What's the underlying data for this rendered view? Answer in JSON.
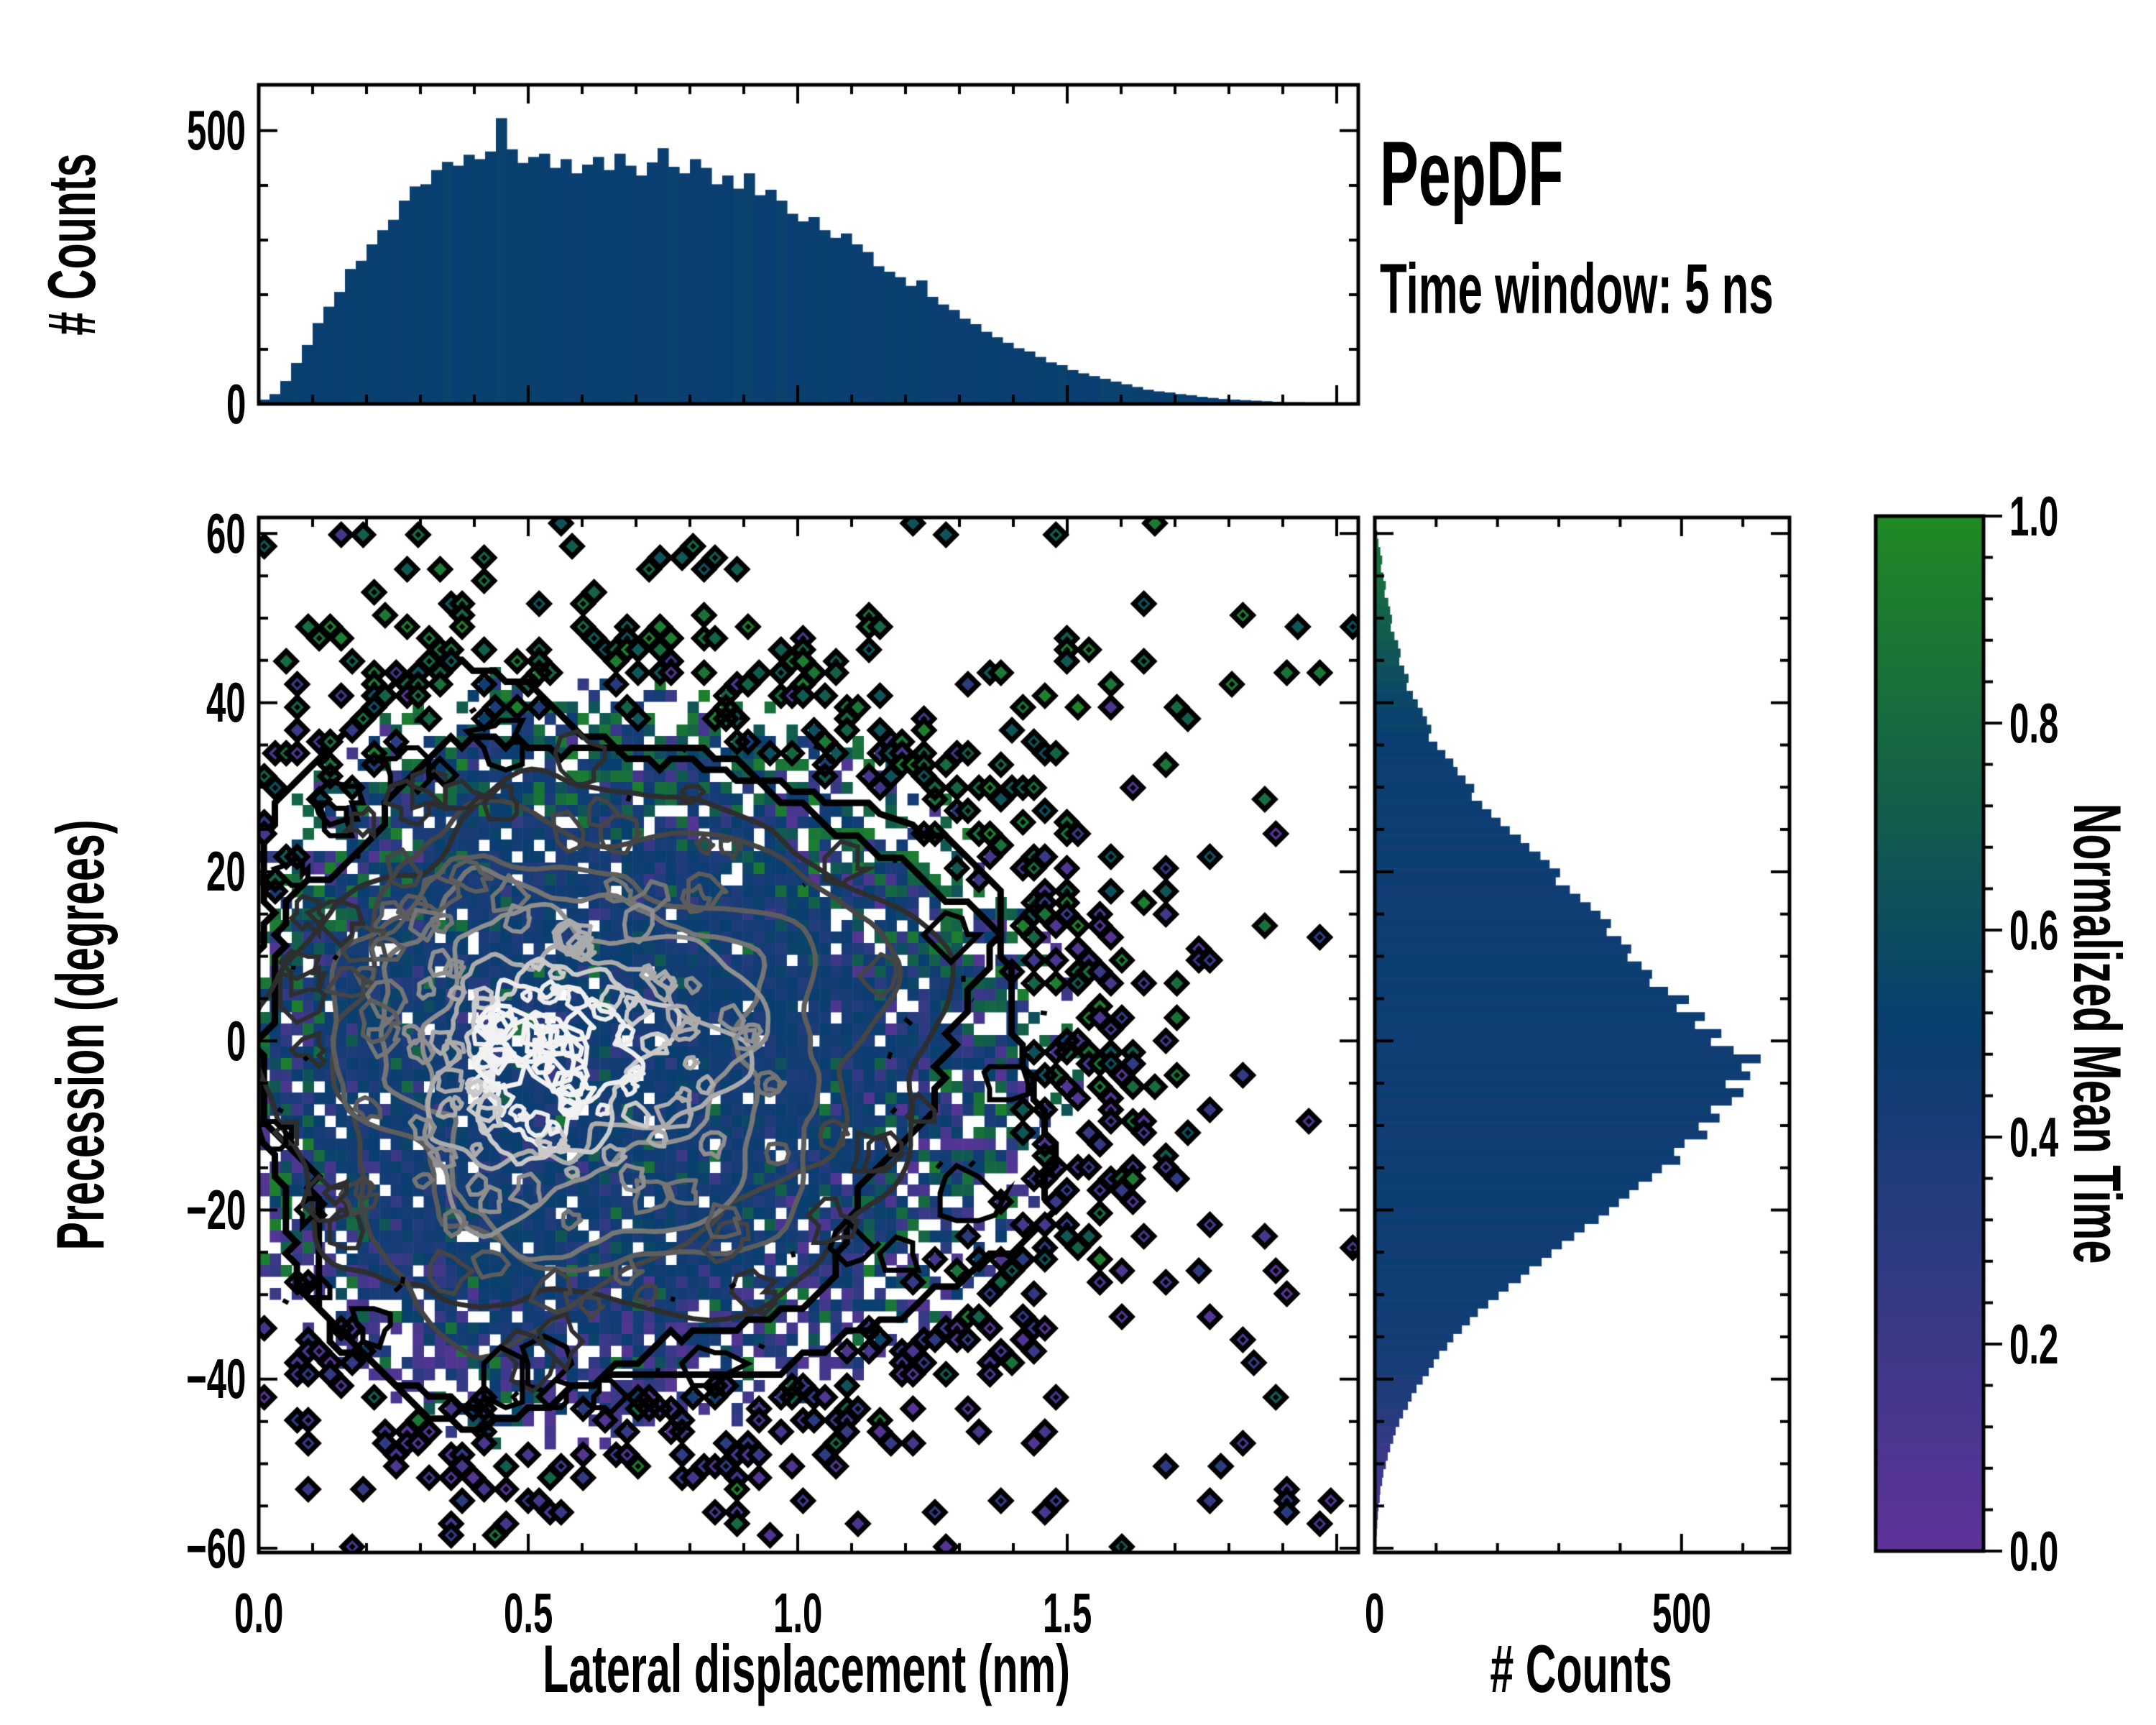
{
  "title": {
    "main": "PepDF",
    "subtitle": "Time window: 5 ns"
  },
  "colors": {
    "background": "#ffffff",
    "spine": "#000000",
    "histogram_bar": "#0d3f6e",
    "colormap_stops": [
      {
        "t": 0.0,
        "color": "#5f3399"
      },
      {
        "t": 0.25,
        "color": "#343a84"
      },
      {
        "t": 0.5,
        "color": "#093e70"
      },
      {
        "t": 0.75,
        "color": "#146347"
      },
      {
        "t": 1.0,
        "color": "#218a24"
      }
    ],
    "contour_grays": [
      "#000000",
      "#000000",
      "#2e2e2e",
      "#454545",
      "#5d5d5d",
      "#757575",
      "#8f8f8f",
      "#ababab",
      "#cacaca",
      "#ededed"
    ]
  },
  "chart_data": [
    {
      "id": "top_histogram",
      "type": "bar",
      "orientation": "vertical",
      "ylabel": "# Counts",
      "xlim": [
        0.0,
        2.04
      ],
      "ylim": [
        0,
        584
      ],
      "yticks": [
        0,
        500
      ],
      "ytick_labels": [
        "0",
        "500"
      ],
      "y_minor_step": 100,
      "x_major_step": 0.5,
      "x_minor_step": 0.1,
      "bin_start": 0.0,
      "bin_width": 0.02,
      "values": [
        8,
        18,
        42,
        75,
        108,
        148,
        178,
        205,
        247,
        262,
        292,
        318,
        337,
        372,
        398,
        402,
        428,
        443,
        436,
        456,
        448,
        462,
        523,
        466,
        441,
        452,
        458,
        432,
        448,
        422,
        438,
        452,
        428,
        458,
        436,
        418,
        442,
        468,
        434,
        422,
        448,
        432,
        402,
        418,
        394,
        422,
        382,
        392,
        372,
        348,
        334,
        342,
        318,
        304,
        312,
        292,
        278,
        252,
        242,
        232,
        216,
        226,
        196,
        182,
        172,
        156,
        146,
        132,
        122,
        112,
        102,
        96,
        86,
        76,
        71,
        62,
        56,
        51,
        46,
        41,
        36,
        31,
        26,
        23,
        21,
        18,
        16,
        13,
        11,
        9,
        8,
        7,
        6,
        5,
        4,
        3,
        3,
        2,
        2,
        1,
        1,
        0
      ]
    },
    {
      "id": "joint_heatmap",
      "type": "heatmap",
      "xlabel": "Lateral displacement (nm)",
      "ylabel": "Precession (degrees)",
      "xlim": [
        0.0,
        2.04
      ],
      "ylim": [
        -60.5,
        61.9
      ],
      "xticks": [
        0.0,
        0.5,
        1.0,
        1.5,
        2.0
      ],
      "xtick_labels": [
        "0.0",
        "0.5",
        "1.0",
        "1.5"
      ],
      "yticks": [
        60,
        40,
        20,
        0,
        -20,
        -40,
        -60
      ],
      "ytick_labels": [
        "60",
        "40",
        "20",
        "0",
        "−20",
        "−40",
        "−60"
      ],
      "x_minor_step": 0.1,
      "y_minor_step": 5,
      "cell_nm": 0.0204,
      "cell_deg": 1.36,
      "color_meaning": "Normalized Mean Time",
      "density_model": {
        "center_nm": 0.53,
        "center_deg": -2,
        "sigma_nm_left": 0.33,
        "sigma_nm_right": 0.52,
        "sigma_deg": 24
      },
      "contour_levels": [
        0.048,
        0.085,
        0.15,
        0.24,
        0.35,
        0.48,
        0.61,
        0.73,
        0.83,
        0.9
      ],
      "seed": 20240517
    },
    {
      "id": "right_histogram",
      "type": "bar",
      "orientation": "horizontal",
      "xlabel": "# Counts",
      "xlim": [
        0,
        676
      ],
      "ylim": [
        -60.5,
        61.9
      ],
      "xticks": [
        0,
        500
      ],
      "xtick_labels": [
        "0",
        "500"
      ],
      "x_minor_step": 100,
      "bin_start_deg": 60.4,
      "bin_step_deg": -1.0,
      "values": [
        4,
        6,
        9,
        12,
        10,
        14,
        18,
        16,
        22,
        25,
        28,
        26,
        32,
        38,
        42,
        40,
        48,
        55,
        52,
        62,
        70,
        78,
        85,
        92,
        88,
        102,
        115,
        128,
        135,
        148,
        162,
        158,
        175,
        190,
        205,
        220,
        238,
        252,
        270,
        285,
        302,
        295,
        318,
        335,
        352,
        368,
        385,
        378,
        402,
        418,
        412,
        435,
        452,
        448,
        478,
        512,
        492,
        538,
        522,
        565,
        548,
        585,
        629,
        598,
        612,
        572,
        601,
        582,
        548,
        562,
        528,
        542,
        505,
        488,
        498,
        468,
        452,
        430,
        415,
        398,
        382,
        365,
        342,
        325,
        305,
        288,
        272,
        252,
        238,
        218,
        202,
        185,
        168,
        155,
        142,
        128,
        118,
        105,
        96,
        88,
        78,
        68,
        60,
        54,
        46,
        40,
        34,
        30,
        25,
        21,
        18,
        14,
        12,
        9,
        8,
        6,
        5,
        4,
        3,
        2
      ]
    },
    {
      "id": "colorbar",
      "type": "colorbar",
      "label": "Normalized Mean Time",
      "range": [
        0.0,
        1.0
      ],
      "ticks": [
        1.0,
        0.8,
        0.6,
        0.4,
        0.2,
        0.0
      ],
      "tick_labels": [
        "1.0",
        "0.8",
        "0.6",
        "0.4",
        "0.2",
        "0.0"
      ],
      "minor_step": 0.04
    }
  ]
}
